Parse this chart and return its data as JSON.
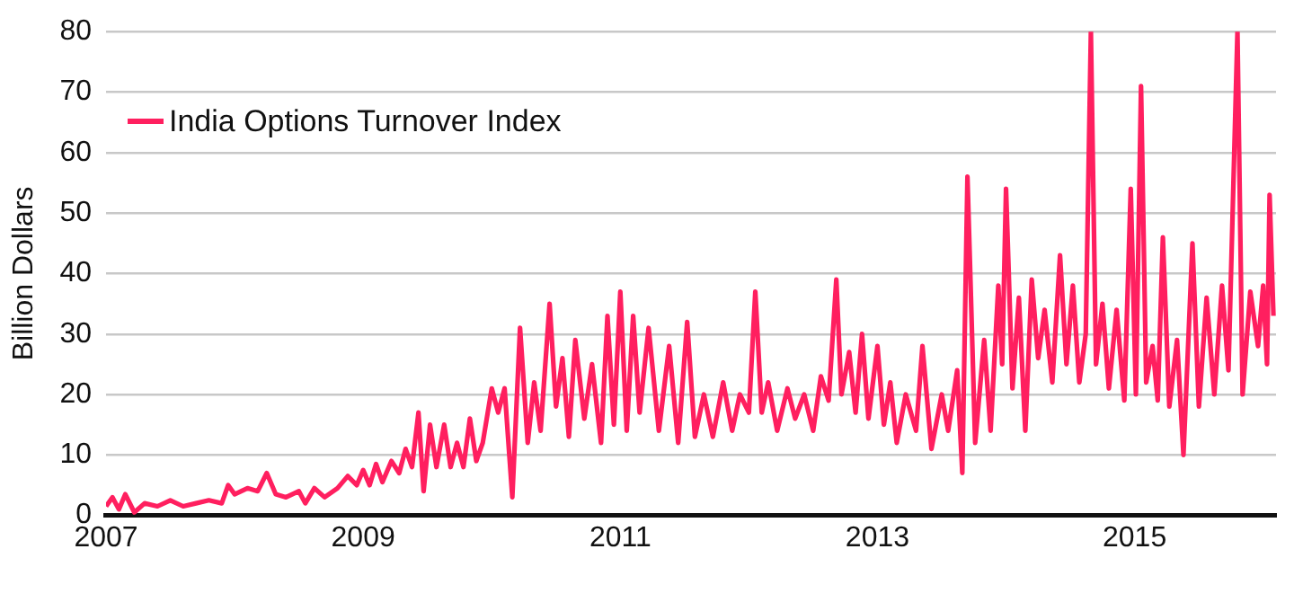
{
  "chart_data": {
    "type": "line",
    "ylabel": "Billion Dollars",
    "legend": "top left",
    "grid": "y",
    "marker": "none",
    "line_style": "solid",
    "xlim": [
      2007,
      2016.1
    ],
    "xticks": [
      2007,
      2009,
      2011,
      2013,
      2015
    ],
    "ylim": [
      0,
      80
    ],
    "yticks": [
      0,
      10,
      20,
      30,
      40,
      50,
      60,
      70,
      80
    ],
    "x": [
      2007.0,
      2007.05,
      2007.1,
      2007.15,
      2007.22,
      2007.3,
      2007.4,
      2007.5,
      2007.6,
      2007.7,
      2007.8,
      2007.9,
      2007.95,
      2008.0,
      2008.1,
      2008.18,
      2008.25,
      2008.32,
      2008.4,
      2008.5,
      2008.55,
      2008.62,
      2008.7,
      2008.8,
      2008.88,
      2008.95,
      2009.0,
      2009.05,
      2009.1,
      2009.15,
      2009.22,
      2009.28,
      2009.33,
      2009.38,
      2009.43,
      2009.47,
      2009.52,
      2009.57,
      2009.63,
      2009.68,
      2009.73,
      2009.78,
      2009.83,
      2009.88,
      2009.93,
      2010.0,
      2010.05,
      2010.1,
      2010.16,
      2010.22,
      2010.28,
      2010.33,
      2010.38,
      2010.45,
      2010.5,
      2010.55,
      2010.6,
      2010.65,
      2010.72,
      2010.78,
      2010.85,
      2010.9,
      2010.95,
      2011.0,
      2011.05,
      2011.1,
      2011.15,
      2011.22,
      2011.3,
      2011.38,
      2011.45,
      2011.52,
      2011.58,
      2011.65,
      2011.72,
      2011.8,
      2011.87,
      2011.93,
      2012.0,
      2012.05,
      2012.1,
      2012.15,
      2012.22,
      2012.3,
      2012.36,
      2012.43,
      2012.5,
      2012.56,
      2012.62,
      2012.68,
      2012.72,
      2012.78,
      2012.83,
      2012.88,
      2012.93,
      2013.0,
      2013.05,
      2013.1,
      2013.15,
      2013.22,
      2013.3,
      2013.35,
      2013.42,
      2013.5,
      2013.55,
      2013.62,
      2013.66,
      2013.7,
      2013.76,
      2013.83,
      2013.88,
      2013.94,
      2013.97,
      2014.0,
      2014.05,
      2014.1,
      2014.15,
      2014.2,
      2014.25,
      2014.3,
      2014.36,
      2014.42,
      2014.47,
      2014.52,
      2014.57,
      2014.62,
      2014.66,
      2014.7,
      2014.75,
      2014.8,
      2014.86,
      2014.92,
      2014.97,
      2015.01,
      2015.05,
      2015.09,
      2015.14,
      2015.18,
      2015.22,
      2015.27,
      2015.33,
      2015.38,
      2015.45,
      2015.5,
      2015.56,
      2015.62,
      2015.68,
      2015.73,
      2015.8,
      2015.84,
      2015.9,
      2015.96,
      2016.0,
      2016.03,
      2016.05,
      2016.08
    ],
    "series": [
      {
        "name": "India Options Turnover Index",
        "color": "#ff1f5f",
        "values": [
          1.5,
          3,
          1,
          3.5,
          0.5,
          2,
          1.5,
          2.5,
          1.5,
          2,
          2.5,
          2,
          5,
          3.5,
          4.5,
          4,
          7,
          3.5,
          3,
          4,
          2,
          4.5,
          3,
          4.5,
          6.5,
          5,
          7.5,
          5,
          8.5,
          5.5,
          9,
          7,
          11,
          8,
          17,
          4,
          15,
          8,
          15,
          8,
          12,
          8,
          16,
          9,
          12,
          21,
          17,
          21,
          3,
          31,
          12,
          22,
          14,
          35,
          18,
          26,
          13,
          29,
          16,
          25,
          12,
          33,
          15,
          37,
          14,
          33,
          17,
          31,
          14,
          28,
          12,
          32,
          13,
          20,
          13,
          22,
          14,
          20,
          17,
          37,
          17,
          22,
          14,
          21,
          16,
          20,
          14,
          23,
          19,
          39,
          20,
          27,
          17,
          30,
          16,
          28,
          15,
          22,
          12,
          20,
          14,
          28,
          11,
          20,
          14,
          24,
          7,
          56,
          12,
          29,
          14,
          38,
          25,
          54,
          21,
          36,
          14,
          39,
          26,
          34,
          22,
          43,
          25,
          38,
          22,
          30,
          80,
          25,
          35,
          21,
          34,
          19,
          54,
          20,
          71,
          22,
          28,
          19,
          46,
          18,
          29,
          10,
          45,
          18,
          36,
          20,
          38,
          24,
          80,
          20,
          37,
          28,
          38,
          25,
          53,
          33
        ]
      }
    ]
  }
}
